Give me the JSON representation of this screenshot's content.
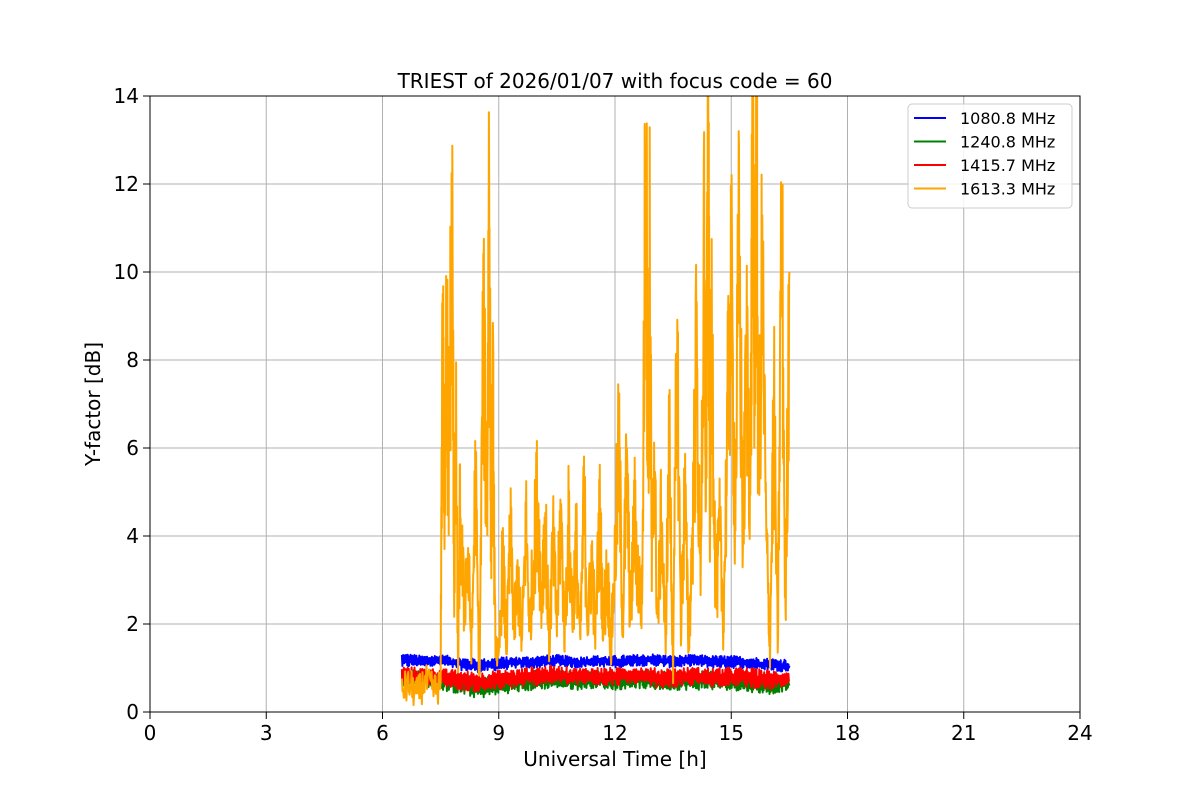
{
  "chart_data": {
    "type": "line",
    "title": "TRIEST of 2026/01/07 with focus code = 60",
    "xlabel": "Universal Time [h]",
    "ylabel": "Y-factor [dB]",
    "xlim": [
      0,
      24
    ],
    "ylim": [
      0,
      14
    ],
    "xticks": [
      0,
      3,
      6,
      9,
      12,
      15,
      18,
      21,
      24
    ],
    "yticks": [
      0,
      2,
      4,
      6,
      8,
      10,
      12,
      14
    ],
    "grid": true,
    "legend_position": "top-right",
    "series": [
      {
        "name": "1080.8 MHz",
        "color": "#0000ff",
        "x": [
          6.5,
          7.0,
          7.5,
          8.0,
          8.5,
          9.0,
          9.5,
          10.0,
          10.5,
          11.0,
          11.5,
          12.0,
          12.5,
          13.0,
          13.5,
          14.0,
          14.5,
          15.0,
          15.5,
          16.0,
          16.5
        ],
        "y": [
          1.15,
          1.18,
          1.2,
          1.1,
          1.05,
          1.1,
          1.12,
          1.15,
          1.2,
          1.15,
          1.18,
          1.15,
          1.2,
          1.22,
          1.15,
          1.2,
          1.15,
          1.15,
          1.12,
          1.1,
          1.05
        ],
        "y_low": [
          1.0,
          1.05,
          1.05,
          0.95,
          0.9,
          0.95,
          1.0,
          1.0,
          1.05,
          1.0,
          1.05,
          1.0,
          1.05,
          1.05,
          1.0,
          1.05,
          1.0,
          1.0,
          0.98,
          0.95,
          0.9
        ],
        "y_high": [
          1.35,
          1.28,
          1.3,
          1.25,
          1.2,
          1.25,
          1.25,
          1.28,
          1.3,
          1.25,
          1.28,
          1.28,
          1.3,
          1.32,
          1.28,
          1.3,
          1.28,
          1.28,
          1.25,
          1.22,
          1.2
        ]
      },
      {
        "name": "1240.8 MHz",
        "color": "#008000",
        "x": [
          6.5,
          7.0,
          7.5,
          8.0,
          8.5,
          9.0,
          9.5,
          10.0,
          10.5,
          11.0,
          11.5,
          12.0,
          12.5,
          13.0,
          13.5,
          14.0,
          14.5,
          15.0,
          15.5,
          16.0,
          16.5
        ],
        "y": [
          0.8,
          0.78,
          0.7,
          0.6,
          0.55,
          0.6,
          0.65,
          0.72,
          0.75,
          0.7,
          0.72,
          0.7,
          0.75,
          0.7,
          0.7,
          0.72,
          0.7,
          0.7,
          0.68,
          0.62,
          0.6
        ],
        "y_low": [
          0.6,
          0.6,
          0.5,
          0.4,
          0.3,
          0.4,
          0.45,
          0.5,
          0.55,
          0.5,
          0.55,
          0.5,
          0.55,
          0.5,
          0.5,
          0.5,
          0.5,
          0.5,
          0.45,
          0.4,
          0.5
        ],
        "y_high": [
          0.95,
          0.95,
          0.9,
          0.85,
          0.8,
          0.85,
          0.88,
          0.95,
          0.95,
          0.92,
          0.95,
          0.92,
          0.95,
          0.92,
          0.92,
          0.95,
          0.92,
          0.92,
          0.9,
          0.85,
          0.8
        ]
      },
      {
        "name": "1415.7 MHz",
        "color": "#ff0000",
        "x": [
          6.5,
          7.0,
          7.5,
          8.0,
          8.5,
          9.0,
          9.5,
          10.0,
          10.5,
          11.0,
          11.5,
          12.0,
          12.5,
          13.0,
          13.5,
          14.0,
          14.5,
          15.0,
          15.5,
          16.0,
          16.5
        ],
        "y": [
          0.85,
          0.82,
          0.78,
          0.72,
          0.68,
          0.72,
          0.75,
          0.82,
          0.85,
          0.8,
          0.82,
          0.8,
          0.85,
          0.8,
          0.78,
          0.82,
          0.8,
          0.82,
          0.78,
          0.75,
          0.72
        ],
        "y_low": [
          0.6,
          0.65,
          0.6,
          0.5,
          0.45,
          0.5,
          0.55,
          0.6,
          0.65,
          0.6,
          0.62,
          0.6,
          0.65,
          0.55,
          0.55,
          0.6,
          0.58,
          0.6,
          0.55,
          0.5,
          0.55
        ],
        "y_high": [
          1.05,
          1.0,
          0.98,
          0.95,
          0.9,
          0.95,
          0.98,
          1.05,
          1.05,
          1.0,
          1.02,
          1.0,
          1.05,
          1.0,
          1.0,
          1.02,
          1.0,
          1.02,
          1.0,
          0.95,
          0.95
        ]
      },
      {
        "name": "1613.3 MHz",
        "color": "#ffa500",
        "x": [
          6.5,
          6.7,
          6.9,
          7.1,
          7.3,
          7.5,
          7.55,
          7.6,
          7.65,
          7.7,
          7.75,
          7.8,
          7.85,
          7.9,
          7.95,
          8.0,
          8.1,
          8.2,
          8.3,
          8.4,
          8.5,
          8.6,
          8.7,
          8.75,
          8.8,
          8.85,
          8.9,
          9.0,
          9.1,
          9.2,
          9.3,
          9.4,
          9.5,
          9.6,
          9.7,
          9.8,
          9.9,
          10.0,
          10.1,
          10.2,
          10.3,
          10.4,
          10.5,
          10.6,
          10.7,
          10.8,
          10.9,
          11.0,
          11.1,
          11.2,
          11.3,
          11.4,
          11.5,
          11.6,
          11.7,
          11.8,
          11.9,
          12.0,
          12.1,
          12.2,
          12.3,
          12.4,
          12.5,
          12.6,
          12.7,
          12.8,
          12.85,
          12.9,
          12.95,
          13.0,
          13.1,
          13.2,
          13.3,
          13.4,
          13.5,
          13.6,
          13.7,
          13.8,
          13.9,
          14.0,
          14.1,
          14.2,
          14.3,
          14.35,
          14.4,
          14.45,
          14.5,
          14.6,
          14.7,
          14.8,
          14.9,
          15.0,
          15.1,
          15.2,
          15.3,
          15.4,
          15.5,
          15.55,
          15.6,
          15.65,
          15.7,
          15.8,
          15.9,
          16.0,
          16.1,
          16.2,
          16.3,
          16.4,
          16.5
        ],
        "y": [
          0.5,
          0.6,
          0.4,
          0.7,
          0.5,
          0.6,
          9.3,
          4.0,
          10.0,
          5.0,
          8.5,
          10.6,
          3.0,
          6.0,
          1.0,
          4.5,
          2.5,
          3.5,
          1.5,
          5.3,
          0.5,
          8.7,
          4.5,
          12.6,
          4.0,
          7.0,
          2.0,
          1.0,
          3.5,
          1.5,
          4.0,
          2.0,
          3.0,
          1.5,
          4.3,
          2.0,
          3.5,
          5.0,
          2.5,
          4.5,
          1.5,
          3.8,
          2.0,
          4.5,
          1.8,
          4.2,
          2.2,
          3.8,
          1.5,
          4.8,
          2.0,
          3.5,
          1.8,
          4.5,
          2.0,
          3.2,
          1.5,
          3.5,
          6.0,
          2.0,
          5.5,
          2.0,
          4.5,
          3.0,
          2.5,
          14.0,
          5.0,
          10.5,
          3.0,
          6.0,
          2.0,
          4.5,
          1.5,
          6.0,
          1.0,
          8.5,
          2.0,
          5.0,
          1.5,
          4.0,
          8.0,
          3.0,
          10.0,
          5.0,
          14.0,
          4.5,
          9.0,
          2.5,
          4.0,
          2.0,
          6.5,
          9.5,
          4.5,
          10.5,
          4.0,
          8.0,
          5.0,
          14.0,
          7.0,
          14.0,
          5.0,
          10.0,
          4.0,
          1.5,
          7.0,
          1.5,
          11.5,
          2.0,
          10.0
        ]
      }
    ]
  }
}
